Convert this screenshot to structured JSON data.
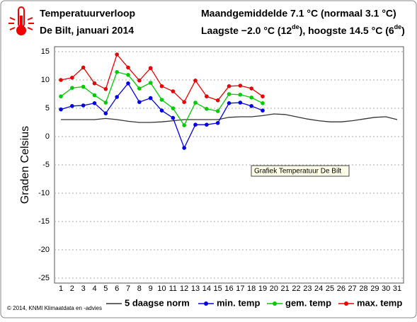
{
  "header": {
    "title": "Temperatuurverloop",
    "subtitle": "De Bilt, januari 2014",
    "summary_line1": "Maandgemiddelde 7.1 °C (normaal 3.1 °C)",
    "summary_line2": [
      "Laagste −2.0 °C (12",
      "de",
      "), hoogste 14.5 °C (6",
      "de",
      ")"
    ]
  },
  "chart_data": {
    "type": "line",
    "ylabel": "Graden Celsius",
    "tooltip": "Grafiek Temperatuur De Bilt",
    "footer": "© 2014, KNMI Klimaatdata en -advies",
    "categories": [
      1,
      2,
      3,
      4,
      5,
      6,
      7,
      8,
      9,
      10,
      11,
      12,
      13,
      14,
      15,
      16,
      17,
      18,
      19,
      20,
      21,
      22,
      23,
      24,
      25,
      26,
      27,
      28,
      29,
      30,
      31
    ],
    "ylim": [
      -25,
      15
    ],
    "yticks": [
      -25,
      -20,
      -15,
      -10,
      -5,
      0,
      5,
      10,
      15
    ],
    "grid": true,
    "series": [
      {
        "name": "5 daagse norm",
        "color": "#333333",
        "markers": false,
        "values": [
          3.0,
          3.0,
          3.0,
          3.0,
          3.2,
          3.0,
          2.7,
          2.5,
          2.5,
          2.6,
          2.8,
          3.0,
          3.0,
          3.0,
          3.0,
          3.4,
          3.5,
          3.5,
          3.7,
          4.0,
          3.9,
          3.5,
          3.1,
          2.8,
          2.6,
          2.6,
          2.8,
          3.1,
          3.4,
          3.5,
          3.0
        ]
      },
      {
        "name": "min. temp",
        "color": "#0000ee",
        "markers": true,
        "values": [
          4.8,
          5.4,
          5.5,
          5.9,
          4.1,
          7.0,
          9.4,
          6.1,
          6.8,
          4.6,
          3.3,
          -2.0,
          2.1,
          2.1,
          2.4,
          5.9,
          6.0,
          5.4,
          4.6,
          null,
          null,
          null,
          null,
          null,
          null,
          null,
          null,
          null,
          null,
          null,
          null
        ]
      },
      {
        "name": "gem. temp",
        "color": "#00cc00",
        "markers": true,
        "values": [
          7.1,
          8.6,
          8.8,
          7.3,
          6.0,
          11.4,
          10.9,
          8.5,
          9.5,
          6.5,
          5.0,
          2.0,
          6.0,
          4.9,
          4.5,
          7.5,
          7.4,
          6.9,
          5.9,
          null,
          null,
          null,
          null,
          null,
          null,
          null,
          null,
          null,
          null,
          null,
          null
        ]
      },
      {
        "name": "max. temp",
        "color": "#ee0000",
        "markers": true,
        "values": [
          10.0,
          10.4,
          12.2,
          9.4,
          8.4,
          14.5,
          12.2,
          9.9,
          12.1,
          8.9,
          8.0,
          6.1,
          9.9,
          7.1,
          6.4,
          8.9,
          9.0,
          8.5,
          7.1,
          null,
          null,
          null,
          null,
          null,
          null,
          null,
          null,
          null,
          null,
          null,
          null
        ]
      }
    ]
  }
}
